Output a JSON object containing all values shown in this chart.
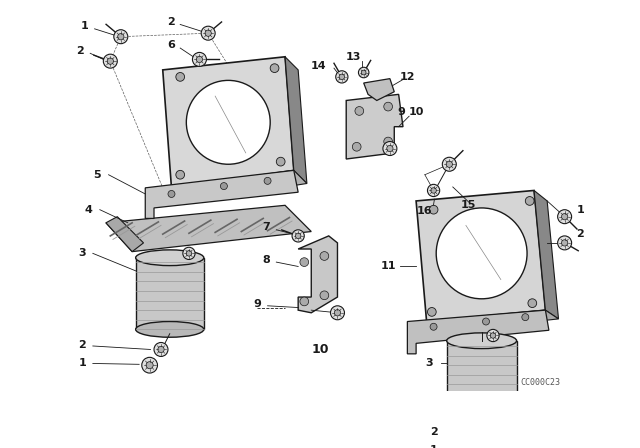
{
  "background_color": "#ffffff",
  "line_color": "#1a1a1a",
  "watermark": "CC000C23",
  "fig_w": 6.4,
  "fig_h": 4.48,
  "dpi": 100
}
